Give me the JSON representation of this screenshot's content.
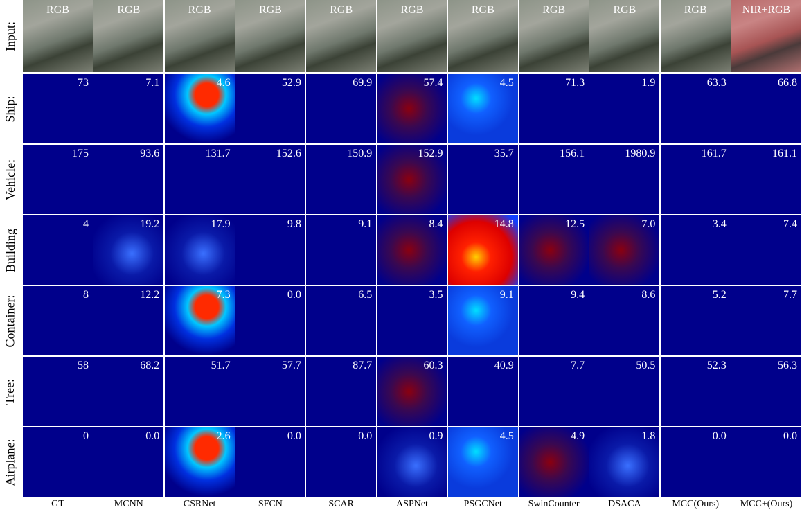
{
  "row_labels": [
    "Input:",
    "Ship:",
    "Vehicle:",
    "Building",
    "Container:",
    "Tree:",
    "Airplane:"
  ],
  "input_labels": [
    "RGB",
    "RGB",
    "RGB",
    "RGB",
    "RGB",
    "RGB",
    "RGB",
    "RGB",
    "RGB",
    "RGB",
    "NIR+RGB"
  ],
  "column_labels": [
    "GT",
    "MCNN",
    "CSRNet",
    "SFCN",
    "SCAR",
    "ASPNet",
    "PSGCNet",
    "SwinCounter",
    "DSACA",
    "MCC(Ours)",
    "MCC+(Ours)"
  ],
  "counts": [
    [
      "73",
      "7.1",
      "4.6",
      "52.9",
      "69.9",
      "57.4",
      "4.5",
      "71.3",
      "1.9",
      "63.3",
      "66.8"
    ],
    [
      "175",
      "93.6",
      "131.7",
      "152.6",
      "150.9",
      "152.9",
      "35.7",
      "156.1",
      "1980.9",
      "161.7",
      "161.1"
    ],
    [
      "4",
      "19.2",
      "17.9",
      "9.8",
      "9.1",
      "8.4",
      "14.8",
      "12.5",
      "7.0",
      "3.4",
      "7.4"
    ],
    [
      "8",
      "12.2",
      "7.3",
      "0.0",
      "6.5",
      "3.5",
      "9.1",
      "9.4",
      "8.6",
      "5.2",
      "7.7"
    ],
    [
      "58",
      "68.2",
      "51.7",
      "57.7",
      "87.7",
      "60.3",
      "40.9",
      "7.7",
      "50.5",
      "52.3",
      "56.3"
    ],
    [
      "0",
      "0.0",
      "2.6",
      "0.0",
      "0.0",
      "0.9",
      "4.5",
      "4.9",
      "1.8",
      "0.0",
      "0.0"
    ]
  ]
}
